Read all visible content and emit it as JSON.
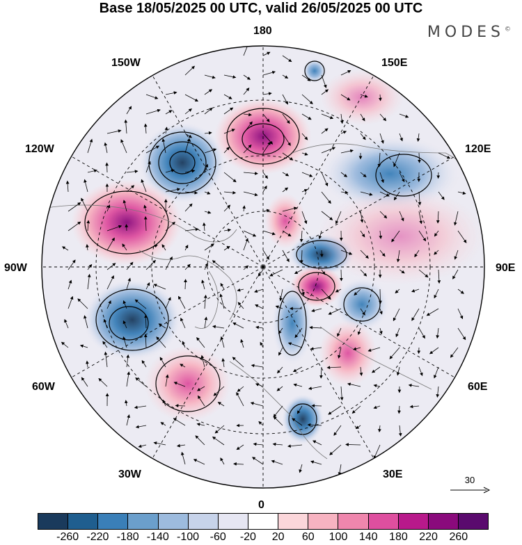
{
  "header": {
    "title": "Base 18/05/2025 00 UTC, valid 26/05/2025 00 UTC",
    "brand": "MODES",
    "brand_mark": "©"
  },
  "map": {
    "projection": "north-polar-stereographic",
    "longitude_labels": {
      "lon_180": "180",
      "lon_150e": "150E",
      "lon_120e": "120E",
      "lon_90e": "90E",
      "lon_60e": "60E",
      "lon_30e": "30E",
      "lon_0": "0",
      "lon_30w": "30W",
      "lon_60w": "60W",
      "lon_90w": "90W",
      "lon_120w": "120W",
      "lon_150w": "150W"
    },
    "reference_vector_label": "30",
    "colors": {
      "outside_disc": "#ffffff",
      "graticule": "#000000",
      "coastline": "#777777",
      "vector": "#000000"
    }
  },
  "colorbar": {
    "ticks": [
      "-260",
      "-220",
      "-180",
      "-140",
      "-100",
      "-60",
      "-20",
      "20",
      "60",
      "100",
      "140",
      "180",
      "220",
      "260"
    ],
    "colors": [
      "#1a3a5c",
      "#1f5e8f",
      "#3a7fb8",
      "#6b9fcc",
      "#9dbbde",
      "#c7d3ea",
      "#e6e6f2",
      "#ffffff",
      "#fbd6da",
      "#f7b3c1",
      "#ef86ad",
      "#de4f9f",
      "#b8198b",
      "#8a0a7c",
      "#5a0a6e"
    ]
  }
}
